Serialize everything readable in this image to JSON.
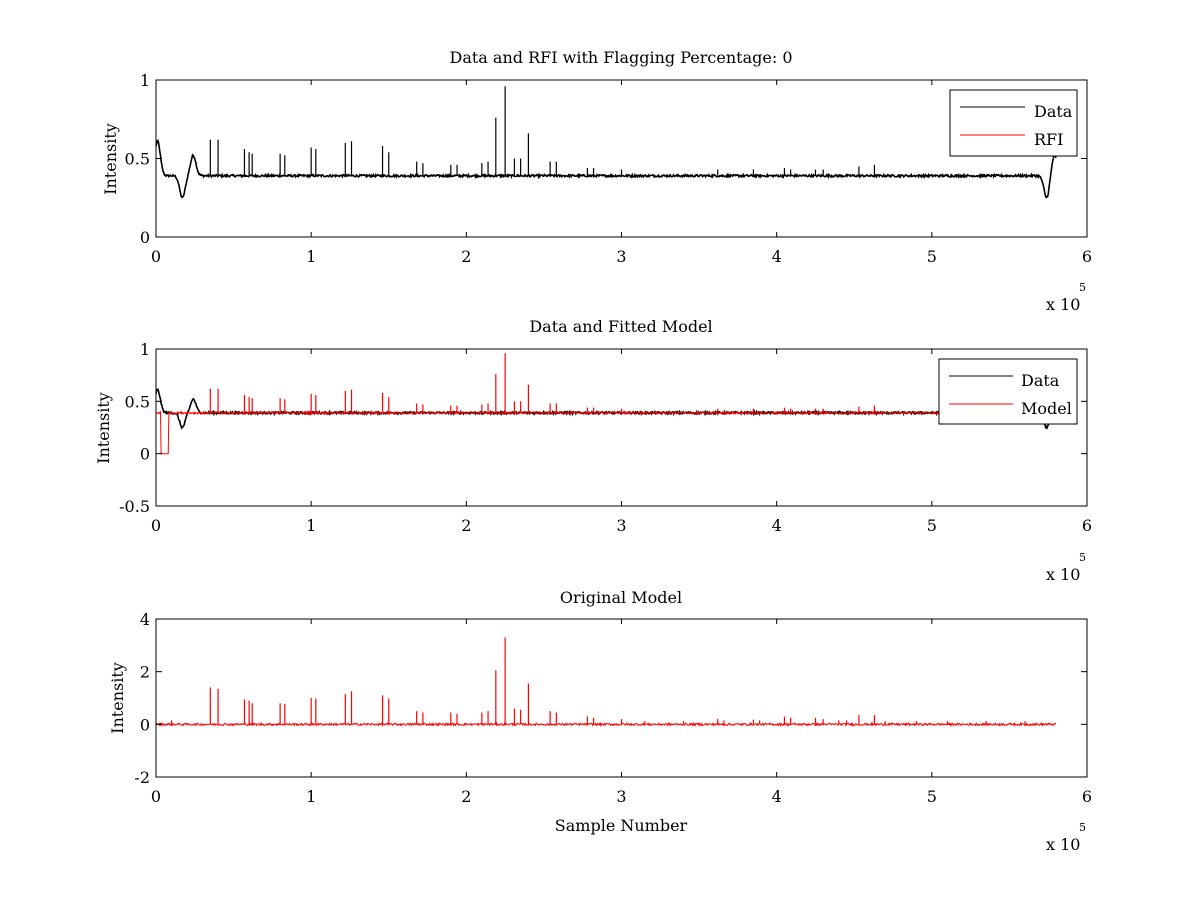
{
  "chart_data": [
    {
      "type": "line",
      "title": "Data and RFI with Flagging Percentage: 0",
      "xlabel": "",
      "ylabel": "Intensity",
      "x_multiplier": "x 10",
      "x_multiplier_exp": "5",
      "xlim": [
        0,
        6
      ],
      "ylim": [
        0,
        1
      ],
      "xticks": [
        "0",
        "1",
        "2",
        "3",
        "4",
        "5",
        "6"
      ],
      "yticks": [
        "0",
        "0.5",
        "1"
      ],
      "ytick_values": [
        0,
        0.5,
        1
      ],
      "legend": {
        "placement": "top-right",
        "entries": [
          "Data",
          "RFI"
        ]
      },
      "series": [
        {
          "name": "Data",
          "color": "#000000",
          "baseline": 0.39,
          "x_end": 5.8,
          "dips": [
            {
              "x": 0.01,
              "y": 0.61
            },
            {
              "x": 0.17,
              "y": 0.25
            },
            {
              "x": 0.24,
              "y": 0.52
            },
            {
              "x": 5.74,
              "y": 0.25
            },
            {
              "x": 5.79,
              "y": 0.52
            }
          ],
          "spikes": [
            [
              0.35,
              0.62
            ],
            [
              0.4,
              0.62
            ],
            [
              0.57,
              0.56
            ],
            [
              0.6,
              0.54
            ],
            [
              0.62,
              0.53
            ],
            [
              0.8,
              0.53
            ],
            [
              0.83,
              0.52
            ],
            [
              1.0,
              0.57
            ],
            [
              1.03,
              0.56
            ],
            [
              1.22,
              0.6
            ],
            [
              1.26,
              0.61
            ],
            [
              1.46,
              0.58
            ],
            [
              1.5,
              0.54
            ],
            [
              1.68,
              0.48
            ],
            [
              1.72,
              0.47
            ],
            [
              1.9,
              0.46
            ],
            [
              1.94,
              0.46
            ],
            [
              2.1,
              0.47
            ],
            [
              2.14,
              0.48
            ],
            [
              2.19,
              0.76
            ],
            [
              2.25,
              0.96
            ],
            [
              2.31,
              0.5
            ],
            [
              2.35,
              0.5
            ],
            [
              2.4,
              0.66
            ],
            [
              2.54,
              0.48
            ],
            [
              2.58,
              0.48
            ],
            [
              2.78,
              0.44
            ],
            [
              2.82,
              0.44
            ],
            [
              3.0,
              0.43
            ],
            [
              3.62,
              0.43
            ],
            [
              3.85,
              0.43
            ],
            [
              4.05,
              0.44
            ],
            [
              4.09,
              0.43
            ],
            [
              4.25,
              0.43
            ],
            [
              4.3,
              0.43
            ],
            [
              4.53,
              0.45
            ],
            [
              4.63,
              0.46
            ]
          ]
        },
        {
          "name": "RFI",
          "color": "#ff0000"
        }
      ]
    },
    {
      "type": "line",
      "title": "Data and Fitted Model",
      "xlabel": "",
      "ylabel": "Intensity",
      "x_multiplier": "x 10",
      "x_multiplier_exp": "5",
      "xlim": [
        0,
        6
      ],
      "ylim": [
        -0.5,
        1
      ],
      "xticks": [
        "0",
        "1",
        "2",
        "3",
        "4",
        "5",
        "6"
      ],
      "yticks": [
        "-0.5",
        "0",
        "0.5",
        "1"
      ],
      "ytick_values": [
        -0.5,
        0,
        0.5,
        1
      ],
      "legend": {
        "placement": "top-right",
        "entries": [
          "Data",
          "Model"
        ]
      },
      "series": [
        {
          "name": "Data",
          "color": "#000000",
          "baseline": 0.39,
          "x_end": 5.8,
          "dips": [
            {
              "x": 0.01,
              "y": 0.61
            },
            {
              "x": 0.17,
              "y": 0.25
            },
            {
              "x": 0.24,
              "y": 0.52
            },
            {
              "x": 5.74,
              "y": 0.25
            },
            {
              "x": 5.79,
              "y": 0.52
            }
          ]
        },
        {
          "name": "Model",
          "color": "#ff0000",
          "baseline": 0.39,
          "x_end": 5.8,
          "step": {
            "x_from": 0.03,
            "x_to": 0.08,
            "y": 0.0
          },
          "spikes": [
            [
              0.35,
              0.62
            ],
            [
              0.4,
              0.62
            ],
            [
              0.57,
              0.56
            ],
            [
              0.6,
              0.54
            ],
            [
              0.62,
              0.53
            ],
            [
              0.8,
              0.53
            ],
            [
              0.83,
              0.52
            ],
            [
              1.0,
              0.57
            ],
            [
              1.03,
              0.56
            ],
            [
              1.22,
              0.6
            ],
            [
              1.26,
              0.61
            ],
            [
              1.46,
              0.58
            ],
            [
              1.5,
              0.54
            ],
            [
              1.68,
              0.48
            ],
            [
              1.72,
              0.47
            ],
            [
              1.9,
              0.46
            ],
            [
              1.94,
              0.46
            ],
            [
              2.1,
              0.47
            ],
            [
              2.14,
              0.48
            ],
            [
              2.19,
              0.76
            ],
            [
              2.25,
              0.96
            ],
            [
              2.31,
              0.5
            ],
            [
              2.35,
              0.5
            ],
            [
              2.4,
              0.66
            ],
            [
              2.54,
              0.48
            ],
            [
              2.58,
              0.48
            ],
            [
              2.78,
              0.44
            ],
            [
              2.82,
              0.44
            ],
            [
              3.0,
              0.43
            ],
            [
              3.62,
              0.43
            ],
            [
              3.85,
              0.43
            ],
            [
              4.05,
              0.44
            ],
            [
              4.09,
              0.43
            ],
            [
              4.25,
              0.43
            ],
            [
              4.3,
              0.43
            ],
            [
              4.53,
              0.45
            ],
            [
              4.63,
              0.46
            ]
          ]
        }
      ]
    },
    {
      "type": "line",
      "title": "Original Model",
      "xlabel": "Sample Number",
      "ylabel": "Intensity",
      "x_multiplier": "x 10",
      "x_multiplier_exp": "5",
      "xlim": [
        0,
        6
      ],
      "ylim": [
        -2,
        4
      ],
      "xticks": [
        "0",
        "1",
        "2",
        "3",
        "4",
        "5",
        "6"
      ],
      "yticks": [
        "-2",
        "0",
        "2",
        "4"
      ],
      "ytick_values": [
        -2,
        0,
        2,
        4
      ],
      "series": [
        {
          "name": "Model",
          "color": "#ff0000",
          "baseline": 0.0,
          "x_end": 5.8,
          "spikes": [
            [
              0.1,
              0.15
            ],
            [
              0.35,
              1.4
            ],
            [
              0.4,
              1.35
            ],
            [
              0.57,
              0.95
            ],
            [
              0.6,
              0.9
            ],
            [
              0.62,
              0.8
            ],
            [
              0.8,
              0.8
            ],
            [
              0.83,
              0.78
            ],
            [
              1.0,
              1.0
            ],
            [
              1.03,
              0.98
            ],
            [
              1.22,
              1.15
            ],
            [
              1.26,
              1.25
            ],
            [
              1.46,
              1.1
            ],
            [
              1.5,
              0.98
            ],
            [
              1.68,
              0.5
            ],
            [
              1.72,
              0.45
            ],
            [
              1.9,
              0.45
            ],
            [
              1.94,
              0.4
            ],
            [
              2.1,
              0.45
            ],
            [
              2.14,
              0.5
            ],
            [
              2.19,
              2.05
            ],
            [
              2.25,
              3.3
            ],
            [
              2.31,
              0.6
            ],
            [
              2.35,
              0.55
            ],
            [
              2.4,
              1.55
            ],
            [
              2.54,
              0.5
            ],
            [
              2.58,
              0.45
            ],
            [
              2.78,
              0.3
            ],
            [
              2.82,
              0.25
            ],
            [
              3.0,
              0.2
            ],
            [
              3.15,
              0.12
            ],
            [
              3.4,
              0.12
            ],
            [
              3.62,
              0.2
            ],
            [
              3.66,
              0.15
            ],
            [
              3.85,
              0.18
            ],
            [
              3.89,
              0.15
            ],
            [
              4.05,
              0.3
            ],
            [
              4.09,
              0.25
            ],
            [
              4.25,
              0.25
            ],
            [
              4.3,
              0.2
            ],
            [
              4.4,
              0.15
            ],
            [
              4.45,
              0.15
            ],
            [
              4.53,
              0.35
            ],
            [
              4.63,
              0.35
            ],
            [
              4.7,
              0.12
            ],
            [
              4.9,
              0.12
            ],
            [
              5.1,
              0.12
            ],
            [
              5.35,
              0.12
            ],
            [
              5.6,
              0.12
            ]
          ]
        }
      ]
    }
  ]
}
